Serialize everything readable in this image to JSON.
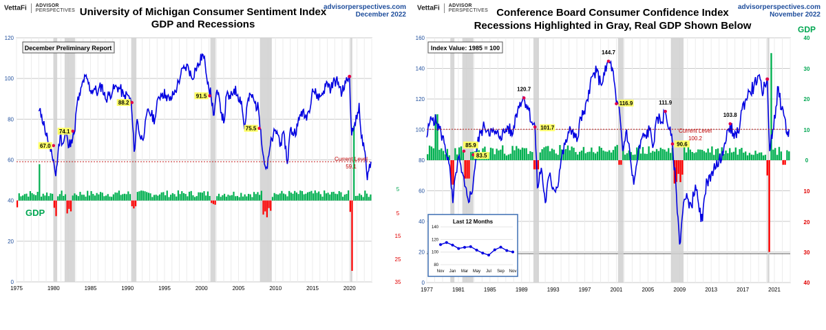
{
  "left": {
    "brand": {
      "name": "VettaFi",
      "line1": "ADVISOR",
      "line2": "PERSPECTIVES"
    },
    "title1": "University of Michigan Consumer Sentiment Index",
    "title2": "GDP and Recessions",
    "site": "advisorperspectives.com",
    "date": "December 2022",
    "report_box": "December Preliminary Report",
    "current_label": "Current Level",
    "current_value": "59.1",
    "gdp_label": "GDP"
  },
  "right": {
    "brand": {
      "name": "VettaFi",
      "line1": "ADVISOR",
      "line2": "PERSPECTIVES"
    },
    "title1": "Conference Board Consumer Confidence Index",
    "title2": "Recessions Highlighted in Gray, Real GDP Shown Below",
    "site": "advisorperspectives.com",
    "date": "November 2022",
    "gdp_label": "GDP",
    "index_box": "Index Value: 1985 = 100",
    "current_label": "Current Level",
    "current_value": "100.2",
    "inset_title": "Last 12 Months"
  },
  "chart_data": [
    {
      "type": "line",
      "title": "University of Michigan Consumer Sentiment Index",
      "xlim": [
        1975,
        2023
      ],
      "ylim": [
        0,
        120
      ],
      "xticks": [
        1975,
        1980,
        1985,
        1990,
        1995,
        2000,
        2005,
        2010,
        2015,
        2020
      ],
      "yticks": [
        0,
        20,
        40,
        60,
        80,
        100,
        120
      ],
      "gdp_axis_labels": [
        "5",
        "5",
        "15",
        "25",
        "35"
      ],
      "recessions": [
        [
          1980.0,
          1980.5
        ],
        [
          1981.5,
          1982.9
        ],
        [
          1990.5,
          1991.2
        ],
        [
          2001.2,
          2001.9
        ],
        [
          2007.9,
          2009.5
        ],
        [
          2020.1,
          2020.3
        ]
      ],
      "series_points": [
        [
          1978.0,
          84
        ],
        [
          1978.4,
          82
        ],
        [
          1978.8,
          76
        ],
        [
          1979.2,
          70
        ],
        [
          1979.6,
          64
        ],
        [
          1980.0,
          60
        ],
        [
          1980.3,
          52
        ],
        [
          1980.6,
          63
        ],
        [
          1980.9,
          72
        ],
        [
          1981.3,
          68
        ],
        [
          1981.7,
          74
        ],
        [
          1982.0,
          66
        ],
        [
          1982.4,
          70
        ],
        [
          1982.8,
          73
        ],
        [
          1983.2,
          88
        ],
        [
          1983.6,
          92
        ],
        [
          1984.0,
          99
        ],
        [
          1984.5,
          100
        ],
        [
          1985.0,
          94
        ],
        [
          1985.5,
          95
        ],
        [
          1986.0,
          93
        ],
        [
          1986.5,
          97
        ],
        [
          1987.0,
          90
        ],
        [
          1987.5,
          92
        ],
        [
          1988.0,
          94
        ],
        [
          1988.5,
          96
        ],
        [
          1989.0,
          95
        ],
        [
          1989.5,
          91
        ],
        [
          1990.0,
          92
        ],
        [
          1990.5,
          88
        ],
        [
          1990.9,
          64
        ],
        [
          1991.3,
          80
        ],
        [
          1991.8,
          70
        ],
        [
          1992.3,
          74
        ],
        [
          1992.8,
          85
        ],
        [
          1993.2,
          82
        ],
        [
          1993.7,
          80
        ],
        [
          1994.2,
          91
        ],
        [
          1994.7,
          93
        ],
        [
          1995.2,
          92
        ],
        [
          1995.7,
          89
        ],
        [
          1996.2,
          92
        ],
        [
          1996.7,
          96
        ],
        [
          1997.2,
          102
        ],
        [
          1997.7,
          105
        ],
        [
          1998.2,
          106
        ],
        [
          1998.7,
          100
        ],
        [
          1999.2,
          105
        ],
        [
          1999.7,
          107
        ],
        [
          2000.1,
          112
        ],
        [
          2000.5,
          107
        ],
        [
          2000.9,
          98
        ],
        [
          2001.3,
          91
        ],
        [
          2001.7,
          82
        ],
        [
          2002.0,
          93
        ],
        [
          2002.5,
          88
        ],
        [
          2003.0,
          78
        ],
        [
          2003.4,
          92
        ],
        [
          2003.9,
          90
        ],
        [
          2004.4,
          95
        ],
        [
          2004.9,
          92
        ],
        [
          2005.4,
          89
        ],
        [
          2005.8,
          75
        ],
        [
          2006.2,
          88
        ],
        [
          2006.7,
          92
        ],
        [
          2007.2,
          88
        ],
        [
          2007.7,
          85
        ],
        [
          2008.0,
          75
        ],
        [
          2008.5,
          58
        ],
        [
          2008.9,
          56
        ],
        [
          2009.3,
          67
        ],
        [
          2009.7,
          72
        ],
        [
          2010.2,
          74
        ],
        [
          2010.7,
          68
        ],
        [
          2011.2,
          72
        ],
        [
          2011.6,
          58
        ],
        [
          2012.0,
          75
        ],
        [
          2012.5,
          73
        ],
        [
          2013.0,
          77
        ],
        [
          2013.5,
          84
        ],
        [
          2014.0,
          81
        ],
        [
          2014.5,
          84
        ],
        [
          2015.0,
          95
        ],
        [
          2015.5,
          92
        ],
        [
          2016.0,
          91
        ],
        [
          2016.5,
          94
        ],
        [
          2017.0,
          98
        ],
        [
          2017.5,
          95
        ],
        [
          2018.0,
          99
        ],
        [
          2018.5,
          98
        ],
        [
          2019.0,
          93
        ],
        [
          2019.5,
          98
        ],
        [
          2020.0,
          101
        ],
        [
          2020.3,
          72
        ],
        [
          2020.7,
          78
        ],
        [
          2021.0,
          80
        ],
        [
          2021.3,
          88
        ],
        [
          2021.6,
          71
        ],
        [
          2022.0,
          65
        ],
        [
          2022.4,
          50
        ],
        [
          2022.7,
          58
        ],
        [
          2022.9,
          59.1
        ]
      ],
      "point_labels": [
        {
          "x": 1980.0,
          "y": 67.0,
          "text": "67.0"
        },
        {
          "x": 1982.6,
          "y": 74.1,
          "text": "74.1"
        },
        {
          "x": 1990.6,
          "y": 88.2,
          "text": "88.2"
        },
        {
          "x": 2001.1,
          "y": 91.5,
          "text": "91.5"
        },
        {
          "x": 2007.8,
          "y": 75.5,
          "text": "75.5"
        }
      ],
      "current_level": 59.1,
      "gdp_series_note": "Quarterly real GDP bars, baseline at index 40"
    },
    {
      "type": "line",
      "title": "Conference Board Consumer Confidence Index",
      "xlim": [
        1977,
        2023
      ],
      "ylim": [
        0,
        160
      ],
      "xticks": [
        1977,
        1981,
        1985,
        1989,
        1993,
        1997,
        2001,
        2005,
        2009,
        2013,
        2017,
        2021
      ],
      "yticks": [
        0,
        20,
        40,
        60,
        80,
        100,
        120,
        140,
        160
      ],
      "gdp_axis_right": {
        "ticks": [
          "40",
          "30",
          "20",
          "10",
          "0",
          "10",
          "20",
          "30",
          "40"
        ]
      },
      "recessions": [
        [
          1980.0,
          1980.5
        ],
        [
          1981.5,
          1982.9
        ],
        [
          1990.5,
          1991.2
        ],
        [
          2001.2,
          2001.9
        ],
        [
          2007.9,
          2009.5
        ],
        [
          2020.1,
          2020.3
        ]
      ],
      "series_points": [
        [
          1977.0,
          95
        ],
        [
          1977.4,
          105
        ],
        [
          1977.8,
          108
        ],
        [
          1978.3,
          104
        ],
        [
          1978.8,
          98
        ],
        [
          1979.3,
          90
        ],
        [
          1979.8,
          78
        ],
        [
          1980.3,
          52
        ],
        [
          1980.7,
          72
        ],
        [
          1981.0,
          82
        ],
        [
          1981.4,
          72
        ],
        [
          1981.8,
          63
        ],
        [
          1982.2,
          55
        ],
        [
          1982.7,
          58
        ],
        [
          1983.0,
          72
        ],
        [
          1983.4,
          90
        ],
        [
          1983.8,
          98
        ],
        [
          1984.3,
          102
        ],
        [
          1984.8,
          100
        ],
        [
          1985.3,
          98
        ],
        [
          1985.8,
          97
        ],
        [
          1986.3,
          96
        ],
        [
          1986.8,
          98
        ],
        [
          1987.3,
          102
        ],
        [
          1987.8,
          96
        ],
        [
          1988.3,
          110
        ],
        [
          1988.8,
          118
        ],
        [
          1989.3,
          120.7
        ],
        [
          1989.8,
          115
        ],
        [
          1990.3,
          105
        ],
        [
          1990.7,
          101.7
        ],
        [
          1991.0,
          62
        ],
        [
          1991.5,
          75
        ],
        [
          1992.0,
          52
        ],
        [
          1992.5,
          70
        ],
        [
          1993.0,
          62
        ],
        [
          1993.5,
          62
        ],
        [
          1994.0,
          80
        ],
        [
          1994.5,
          90
        ],
        [
          1995.0,
          98
        ],
        [
          1995.5,
          100
        ],
        [
          1996.0,
          92
        ],
        [
          1996.5,
          108
        ],
        [
          1997.0,
          110
        ],
        [
          1997.5,
          126
        ],
        [
          1998.0,
          135
        ],
        [
          1998.5,
          138
        ],
        [
          1999.0,
          130
        ],
        [
          1999.5,
          136
        ],
        [
          2000.0,
          144.7
        ],
        [
          2000.5,
          140
        ],
        [
          2001.0,
          116.9
        ],
        [
          2001.4,
          112
        ],
        [
          2001.8,
          86
        ],
        [
          2002.3,
          100
        ],
        [
          2002.8,
          80
        ],
        [
          2003.2,
          64
        ],
        [
          2003.7,
          82
        ],
        [
          2004.2,
          94
        ],
        [
          2004.7,
          96
        ],
        [
          2005.2,
          100
        ],
        [
          2005.7,
          90
        ],
        [
          2006.2,
          108
        ],
        [
          2006.7,
          105
        ],
        [
          2007.2,
          111.9
        ],
        [
          2007.7,
          100
        ],
        [
          2008.1,
          90.6
        ],
        [
          2008.6,
          58
        ],
        [
          2009.0,
          25
        ],
        [
          2009.5,
          52
        ],
        [
          2010.0,
          55
        ],
        [
          2010.5,
          50
        ],
        [
          2011.0,
          64
        ],
        [
          2011.5,
          46
        ],
        [
          2011.9,
          40
        ],
        [
          2012.4,
          68
        ],
        [
          2012.9,
          66
        ],
        [
          2013.4,
          78
        ],
        [
          2013.9,
          76
        ],
        [
          2014.4,
          86
        ],
        [
          2014.9,
          93
        ],
        [
          2015.4,
          103.8
        ],
        [
          2015.9,
          94
        ],
        [
          2016.4,
          98
        ],
        [
          2016.9,
          113
        ],
        [
          2017.4,
          120
        ],
        [
          2017.9,
          125
        ],
        [
          2018.4,
          128
        ],
        [
          2018.9,
          135
        ],
        [
          2019.4,
          126
        ],
        [
          2019.9,
          128
        ],
        [
          2020.1,
          133
        ],
        [
          2020.4,
          86
        ],
        [
          2020.8,
          100
        ],
        [
          2021.2,
          115
        ],
        [
          2021.5,
          128
        ],
        [
          2021.9,
          113
        ],
        [
          2022.3,
          108
        ],
        [
          2022.6,
          97
        ],
        [
          2022.85,
          100.2
        ]
      ],
      "point_labels": [
        {
          "x": 1981.7,
          "y": 85.9,
          "text": "85.9"
        },
        {
          "x": 1982.9,
          "y": 83.5,
          "text": "83.5"
        },
        {
          "x": 1989.3,
          "y": 120.7,
          "text": "120.7"
        },
        {
          "x": 1990.7,
          "y": 101.7,
          "text": "101.7"
        },
        {
          "x": 2000.0,
          "y": 144.7,
          "text": "144.7"
        },
        {
          "x": 2001.0,
          "y": 116.9,
          "text": "116.9"
        },
        {
          "x": 2007.2,
          "y": 111.9,
          "text": "111.9"
        },
        {
          "x": 2008.1,
          "y": 90.6,
          "text": "90.6"
        },
        {
          "x": 2015.4,
          "y": 103.8,
          "text": "103.8"
        }
      ],
      "current_level": 100.2,
      "inset": {
        "title": "Last 12 Months",
        "categories": [
          "Nov",
          "Dec",
          "Jan",
          "Feb",
          "Mar",
          "Apr",
          "May",
          "Jun",
          "Jul",
          "Aug",
          "Sep",
          "Oct",
          "Nov"
        ],
        "xtick_labels": [
          "Nov",
          "Jan",
          "Mar",
          "May",
          "Jul",
          "Sep",
          "Nov"
        ],
        "values": [
          111.9,
          115.2,
          111.1,
          105.7,
          107.6,
          108.6,
          103.2,
          98.4,
          95.3,
          103.6,
          107.8,
          102.5,
          100.2
        ],
        "ylim": [
          80,
          140
        ],
        "yticks": [
          80,
          100,
          120,
          140
        ]
      }
    }
  ]
}
